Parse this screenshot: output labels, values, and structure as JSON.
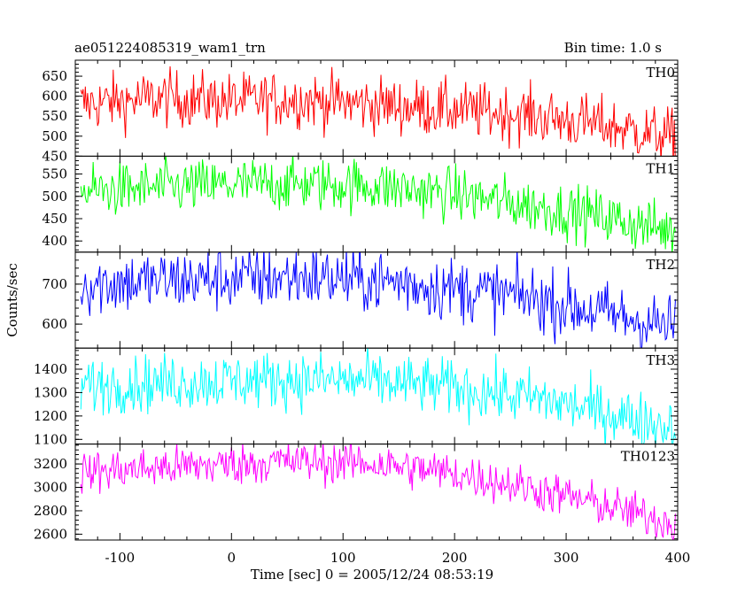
{
  "header": {
    "title": "ae051224085319_wam1_trn",
    "bin_time": "Bin time: 1.0 s"
  },
  "chart_data": {
    "type": "line",
    "title": "ae051224085319_wam1_trn",
    "annotation": "Bin time: 1.0 s",
    "xlabel": "Time [sec] 0 = 2005/12/24 08:53:19",
    "ylabel": "Counts/sec",
    "xlim": [
      -140,
      400
    ],
    "xticks": [
      -100,
      0,
      100,
      200,
      300,
      400
    ],
    "x_start": -135,
    "x_end": 398,
    "x_step": 1,
    "grid": false,
    "panels": [
      {
        "name": "TH0",
        "color": "#ff0000",
        "ylim": [
          450,
          690
        ],
        "yticks": [
          450,
          500,
          550,
          600,
          650
        ],
        "level": [
          [
            -135,
            580
          ],
          [
            -60,
            595
          ],
          [
            0,
            588
          ],
          [
            60,
            592
          ],
          [
            150,
            575
          ],
          [
            260,
            555
          ],
          [
            340,
            525
          ],
          [
            398,
            495
          ]
        ],
        "noise": 35
      },
      {
        "name": "TH1",
        "color": "#00ff00",
        "ylim": [
          375,
          590
        ],
        "yticks": [
          400,
          450,
          500,
          550
        ],
        "level": [
          [
            -135,
            510
          ],
          [
            -60,
            520
          ],
          [
            40,
            528
          ],
          [
            120,
            525
          ],
          [
            200,
            505
          ],
          [
            250,
            485
          ],
          [
            320,
            460
          ],
          [
            398,
            420
          ]
        ],
        "noise": 30
      },
      {
        "name": "TH2",
        "color": "#0000ff",
        "ylim": [
          540,
          780
        ],
        "yticks": [
          600,
          700
        ],
        "level": [
          [
            -135,
            700
          ],
          [
            -40,
            710
          ],
          [
            60,
            718
          ],
          [
            150,
            705
          ],
          [
            190,
            690
          ],
          [
            260,
            670
          ],
          [
            320,
            635
          ],
          [
            398,
            590
          ]
        ],
        "noise": 40
      },
      {
        "name": "TH3",
        "color": "#00ffff",
        "ylim": [
          1080,
          1490
        ],
        "yticks": [
          1100,
          1200,
          1300,
          1400
        ],
        "level": [
          [
            -135,
            1330
          ],
          [
            -40,
            1345
          ],
          [
            40,
            1355
          ],
          [
            120,
            1350
          ],
          [
            200,
            1320
          ],
          [
            280,
            1270
          ],
          [
            340,
            1210
          ],
          [
            398,
            1150
          ]
        ],
        "noise": 60
      },
      {
        "name": "TH0123",
        "color": "#ff00ff",
        "ylim": [
          2550,
          3370
        ],
        "yticks": [
          2600,
          2800,
          3000,
          3200
        ],
        "level": [
          [
            -135,
            3130
          ],
          [
            -40,
            3180
          ],
          [
            40,
            3220
          ],
          [
            120,
            3210
          ],
          [
            200,
            3120
          ],
          [
            260,
            3010
          ],
          [
            320,
            2880
          ],
          [
            398,
            2690
          ]
        ],
        "noise": 90
      }
    ]
  }
}
